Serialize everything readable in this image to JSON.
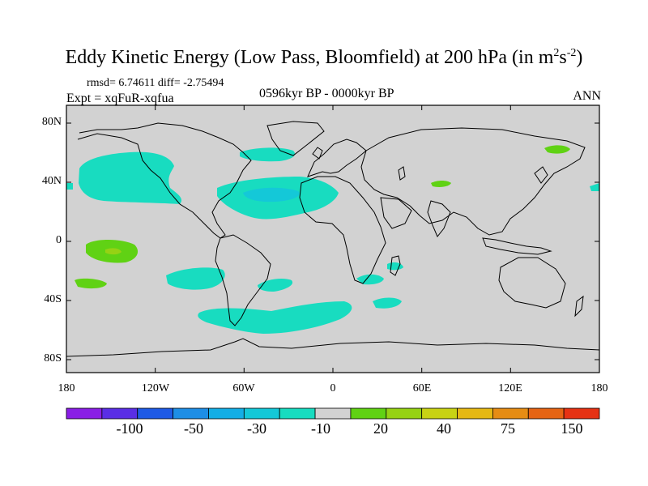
{
  "title": {
    "main": "Eddy Kinetic Energy (Low Pass, Bloomfield) at 200 hPa (in m",
    "sup1": "2",
    "mid": "s",
    "sup2": "-2",
    "close": ")"
  },
  "stats": "rmsd= 6.74611 diff= -2.75494",
  "experiment": "Expt = xqFuR-xqfua",
  "period": "0596kyr BP - 0000kyr BP",
  "season": "ANN",
  "map": {
    "background_color": "#d2d2d2",
    "lat_labels": [
      "80N",
      "40N",
      "0",
      "40S",
      "80S"
    ],
    "lon_labels": [
      "180",
      "120W",
      "60W",
      "0",
      "60E",
      "120E",
      "180"
    ]
  },
  "colorbar": {
    "colors": [
      "#8a1ee6",
      "#5a2ee6",
      "#1e5ae6",
      "#1e8ee6",
      "#14aee6",
      "#14c8d8",
      "#18dcc0",
      "#d2d2d2",
      "#60d214",
      "#96d214",
      "#c8d214",
      "#e6b814",
      "#e68c14",
      "#e66414",
      "#e63214"
    ],
    "labels": [
      "-100",
      "-50",
      "-30",
      "-10",
      "20",
      "40",
      "75",
      "150"
    ]
  },
  "regions": {
    "cyan_color": "#18dcc0",
    "cyan_dark_color": "#14c8d8",
    "green_color": "#60d214",
    "yellowgreen_color": "#96d214"
  }
}
